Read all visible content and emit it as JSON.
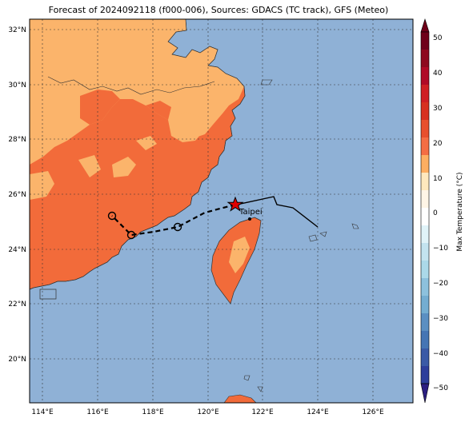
{
  "title": "Forecast of 2024092118 (f000-006), Sources: GDACS (TC track), GFS (Meteo)",
  "lat_labels": [
    "32°N",
    "30°N",
    "28°N",
    "26°N",
    "24°N",
    "22°N",
    "20°N"
  ],
  "lon_labels": [
    "114°E",
    "116°E",
    "118°E",
    "120°E",
    "122°E",
    "124°E",
    "126°E"
  ],
  "city_label": "Taipei",
  "colorbar": {
    "label": "Max Temperature (°C)",
    "ticks": [
      "50",
      "40",
      "30",
      "20",
      "10",
      "0",
      "−10",
      "−20",
      "−30",
      "−40",
      "−50"
    ],
    "colors": [
      "#6f0019",
      "#b00a26",
      "#d7301f",
      "#f46d43",
      "#fdae61",
      "#fee8bd",
      "#ffffff",
      "#e0f3f8",
      "#abd9e9",
      "#74add1",
      "#4575b4",
      "#2d3e9b",
      "#2b1e80"
    ]
  },
  "colors": {
    "ocean": "#8fb1d6",
    "land_warm": "#f26b3a",
    "land_mild": "#fbb46b"
  }
}
